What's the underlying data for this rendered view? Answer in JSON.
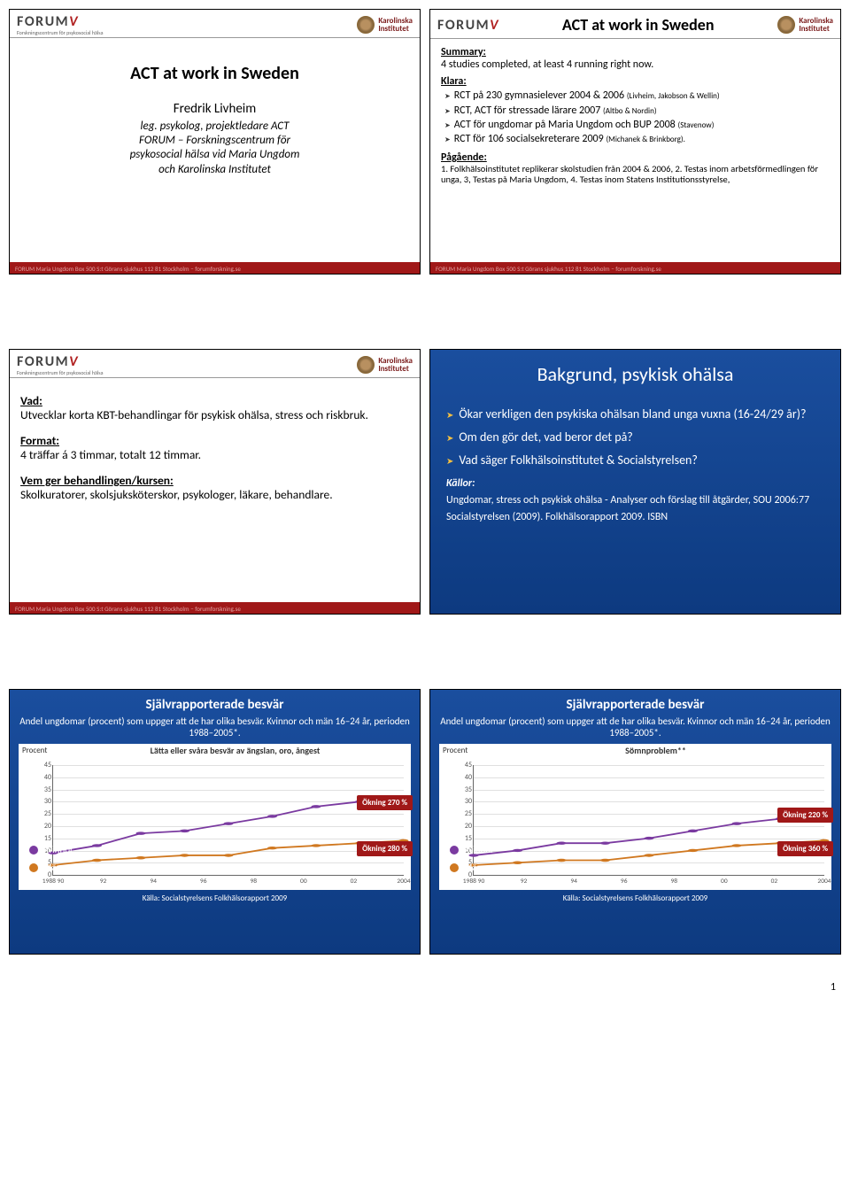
{
  "branding": {
    "forum_name": "FORUM",
    "forum_sub": "Forskningscentrum för psykosocial hälsa",
    "ki_name": "Karolinska\nInstitutet"
  },
  "footer_text": "FORUM Maria Ungdom Box 500 S:t Görans sjukhus 112 81 Stockholm – forumforskning.se",
  "slide1": {
    "title": "ACT at work in Sweden",
    "author": "Fredrik Livheim",
    "role": "leg. psykolog, projektledare ACT",
    "org1": "FORUM – Forskningscentrum för",
    "org2": "psykosocial hälsa vid Maria Ungdom",
    "org3": "och Karolinska Institutet"
  },
  "slide2": {
    "title": "ACT at work in Sweden",
    "summary_label": "Summary:",
    "summary_text": "4 studies completed, at least 4 running right now.",
    "klara_label": "Klara:",
    "klara_items": [
      {
        "main": "RCT på 230 gymnasielever 2004 & 2006",
        "note": "(Livheim, Jakobson & Wellin)"
      },
      {
        "main": "RCT, ACT för stressade lärare 2007",
        "note": "(Altbo & Nordin)"
      },
      {
        "main": "ACT för ungdomar på Maria Ungdom och BUP 2008",
        "note": "(Stavenow)"
      },
      {
        "main": "RCT för 106 socialsekreterare 2009",
        "note": "(Michanek & Brinkborg)."
      }
    ],
    "pending_label": "Pågående:",
    "pending_text": "1. Folkhälsoinstitutet replikerar skolstudien från 2004 & 2006, 2. Testas inom arbetsförmedlingen för unga, 3, Testas på Maria Ungdom, 4. Testas inom Statens Institutionsstyrelse,"
  },
  "slide3": {
    "vad_label": "Vad:",
    "vad_text": "Utvecklar korta KBT-behandlingar för psykisk ohälsa, stress och riskbruk.",
    "format_label": "Format:",
    "format_text": "4 träffar á 3 timmar, totalt 12 timmar.",
    "vem_label": "Vem ger behandlingen/kursen:",
    "vem_text": "Skolkuratorer, skolsjuksköterskor, psykologer, läkare, behandlare."
  },
  "slide4": {
    "title": "Bakgrund, psykisk ohälsa",
    "bullets": [
      "Ökar verkligen den psykiska ohälsan bland unga vuxna (16-24/29 år)?",
      "Om den gör det, vad beror det på?",
      "Vad säger Folkhälsoinstitutet & Socialstyrelsen?"
    ],
    "sources_label": "Källor:",
    "sources": [
      "Ungdomar, stress och psykisk ohälsa - Analyser och förslag till åtgärder, SOU 2006:77",
      "Socialstyrelsen (2009). Folkhälsorapport 2009. ISBN"
    ]
  },
  "chart_common": {
    "title": "Självrapporterade besvär",
    "subtitle": "Andel ungdomar (procent) som uppger att de har olika besvär. Kvinnor och män 16–24 år, perioden 1988–2005*.",
    "ylabel": "Procent",
    "legend_women": "Kvinnor",
    "legend_men": "Män",
    "source": "Källa: Socialstyrelsens Folkhälsorapport 2009",
    "ylim": [
      0,
      45
    ],
    "ytick_step": 5,
    "x_labels": [
      "1988 90",
      "92",
      "94",
      "96",
      "98",
      "00",
      "02",
      "2004"
    ],
    "colors": {
      "women": "#7a3aa0",
      "men": "#d07820",
      "grid": "#e0e0e0",
      "axis": "#666666",
      "callout_bg": "#a01818"
    }
  },
  "slide5": {
    "inner_title": "Lätta eller svåra besvär av ängslan, oro, ångest",
    "women_y": [
      9,
      12,
      17,
      18,
      21,
      24,
      28,
      30,
      30
    ],
    "men_y": [
      4,
      6,
      7,
      8,
      8,
      11,
      12,
      13,
      14
    ],
    "callout_top": "Ökning 270 %",
    "callout_bottom": "Ökning 280 %"
  },
  "slide6": {
    "inner_title": "Sömnproblem**",
    "women_y": [
      8,
      10,
      13,
      13,
      15,
      18,
      21,
      23,
      24
    ],
    "men_y": [
      4,
      5,
      6,
      6,
      8,
      10,
      12,
      13,
      14
    ],
    "callout_top": "Ökning 220 %",
    "callout_bottom": "Ökning 360 %"
  },
  "page_number": "1"
}
